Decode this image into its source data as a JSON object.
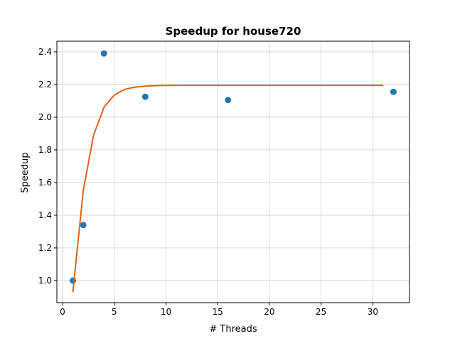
{
  "chart_data": {
    "type": "scatter",
    "title": "Speedup for house720",
    "xlabel": "# Threads",
    "ylabel": "Speedup",
    "xlim": [
      -0.55,
      33.55
    ],
    "ylim": [
      0.865,
      2.465
    ],
    "xticks": [
      0,
      5,
      10,
      15,
      20,
      25,
      30
    ],
    "yticks": [
      1.0,
      1.2,
      1.4,
      1.6,
      1.8,
      2.0,
      2.2,
      2.4
    ],
    "ytick_labels": [
      "1.0",
      "1.2",
      "1.4",
      "1.6",
      "1.8",
      "2.0",
      "2.2",
      "2.4"
    ],
    "grid": true,
    "series": [
      {
        "kind": "scatter",
        "color": "#1f77b4",
        "points": [
          {
            "x": 1,
            "y": 1.0
          },
          {
            "x": 2,
            "y": 1.34
          },
          {
            "x": 4,
            "y": 2.39
          },
          {
            "x": 8,
            "y": 2.125
          },
          {
            "x": 16,
            "y": 2.105
          },
          {
            "x": 32,
            "y": 2.155
          }
        ]
      },
      {
        "kind": "line",
        "color": "#e0621a",
        "points": [
          {
            "x": 1,
            "y": 0.93
          },
          {
            "x": 2,
            "y": 1.55
          },
          {
            "x": 3,
            "y": 1.89
          },
          {
            "x": 4,
            "y": 2.06
          },
          {
            "x": 5,
            "y": 2.135
          },
          {
            "x": 6,
            "y": 2.17
          },
          {
            "x": 7,
            "y": 2.184
          },
          {
            "x": 8,
            "y": 2.19
          },
          {
            "x": 9,
            "y": 2.193
          },
          {
            "x": 10,
            "y": 2.194
          },
          {
            "x": 12,
            "y": 2.195
          },
          {
            "x": 15,
            "y": 2.195
          },
          {
            "x": 20,
            "y": 2.195
          },
          {
            "x": 25,
            "y": 2.195
          },
          {
            "x": 31,
            "y": 2.195
          }
        ]
      }
    ]
  }
}
